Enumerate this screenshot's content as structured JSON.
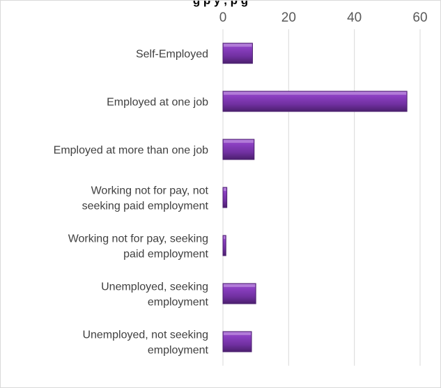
{
  "chart_data": {
    "type": "bar",
    "orientation": "horizontal",
    "title": "g            p y                 ,    p    g    ",
    "categories": [
      [
        "Self-Employed"
      ],
      [
        "Employed at one job"
      ],
      [
        "Employed at more than one job"
      ],
      [
        "Working not for pay, not",
        "seeking paid employment"
      ],
      [
        "Working not for pay, seeking",
        "paid employment"
      ],
      [
        "Unemployed, seeking",
        "employment"
      ],
      [
        "Unemployed, not seeking",
        "employment"
      ]
    ],
    "values": [
      9,
      56,
      9.5,
      1.2,
      0.9,
      10,
      8.7
    ],
    "x_ticks": [
      "0",
      "20",
      "40",
      "60"
    ],
    "xlim": [
      0,
      60
    ],
    "axis_position": "top",
    "grid": true,
    "bar_color": "#7030a0",
    "bar_edge_color": "#4b1f6e"
  }
}
